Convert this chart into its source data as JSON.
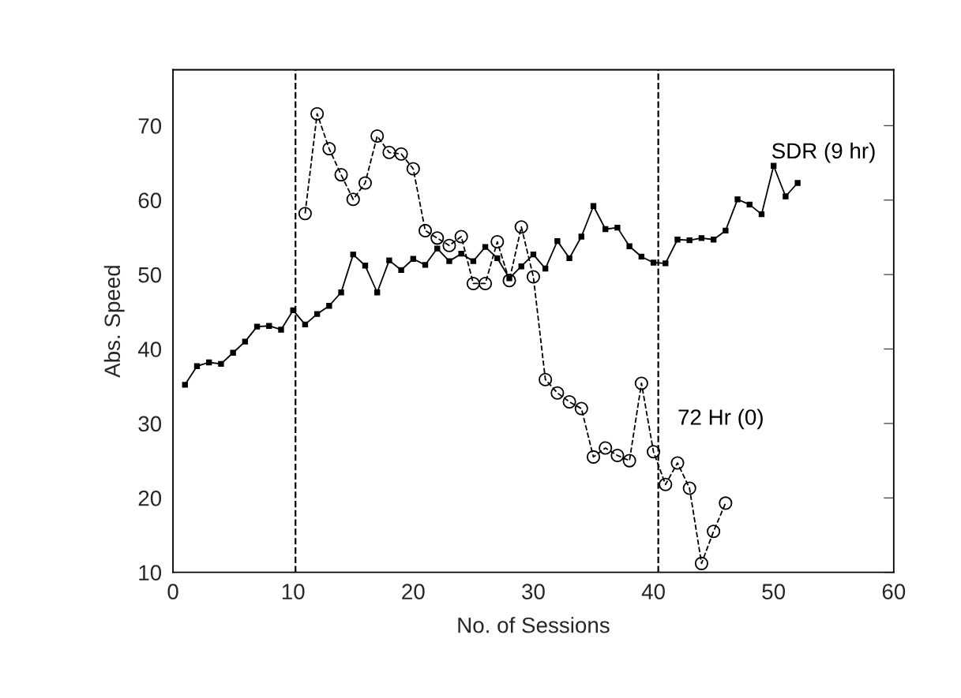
{
  "chart_data": {
    "type": "line",
    "xlabel": "No. of Sessions",
    "ylabel": "Abs. Speed",
    "xlim": [
      0,
      60
    ],
    "ylim": [
      10,
      77.5
    ],
    "xticks": [
      0,
      10,
      20,
      30,
      40,
      50,
      60
    ],
    "yticks": [
      10,
      20,
      30,
      40,
      50,
      60,
      70
    ],
    "grid": false,
    "legend": false,
    "series": [
      {
        "name": "SDR (9 hr)",
        "color": "#000000",
        "marker": "square",
        "line_style": "solid",
        "x": [
          1,
          2,
          3,
          4,
          5,
          6,
          7,
          8,
          9,
          10,
          11,
          12,
          13,
          14,
          15,
          16,
          17,
          18,
          19,
          20,
          21,
          22,
          23,
          24,
          25,
          26,
          27,
          28,
          29,
          30,
          31,
          32,
          33,
          34,
          35,
          36,
          37,
          38,
          39,
          40,
          41,
          42,
          43,
          44,
          45,
          46,
          47,
          48,
          49,
          50,
          51,
          52
        ],
        "values": [
          35.2,
          37.7,
          38.2,
          38.0,
          39.5,
          41.0,
          43.0,
          43.1,
          42.6,
          45.2,
          43.3,
          44.7,
          45.8,
          47.6,
          52.7,
          51.2,
          47.6,
          51.9,
          50.6,
          52.1,
          51.3,
          53.5,
          51.8,
          52.8,
          51.8,
          53.7,
          52.2,
          49.5,
          51.1,
          52.7,
          50.8,
          54.5,
          52.2,
          55.1,
          59.2,
          56.1,
          56.3,
          53.8,
          52.4,
          51.6,
          51.5,
          54.7,
          54.6,
          54.9,
          54.7,
          55.9,
          60.1,
          59.4,
          58.1,
          64.6,
          60.5,
          62.3
        ]
      },
      {
        "name": "72 Hr (0)",
        "color": "#000000",
        "marker": "circle",
        "line_style": "dashed",
        "x": [
          11,
          12,
          13,
          14,
          15,
          16,
          17,
          18,
          19,
          20,
          21,
          22,
          23,
          24,
          25,
          26,
          27,
          28,
          29,
          30,
          31,
          32,
          33,
          34,
          35,
          36,
          37,
          38,
          39,
          40,
          41,
          42,
          43,
          44,
          45,
          46
        ],
        "values": [
          58.2,
          71.6,
          66.9,
          63.4,
          60.1,
          62.3,
          68.6,
          66.4,
          66.2,
          64.2,
          55.9,
          54.9,
          53.9,
          55.1,
          48.8,
          48.8,
          54.4,
          49.2,
          56.4,
          49.7,
          35.9,
          34.1,
          32.9,
          32.0,
          25.5,
          26.7,
          25.7,
          25.0,
          35.4,
          26.2,
          21.8,
          24.7,
          21.3,
          11.2,
          15.5,
          19.3
        ]
      }
    ],
    "ref_lines": [
      {
        "axis": "x",
        "value": 10.2,
        "line_style": "dashed",
        "color": "#000000"
      },
      {
        "axis": "x",
        "value": 40.4,
        "line_style": "dashed",
        "color": "#000000"
      }
    ]
  }
}
